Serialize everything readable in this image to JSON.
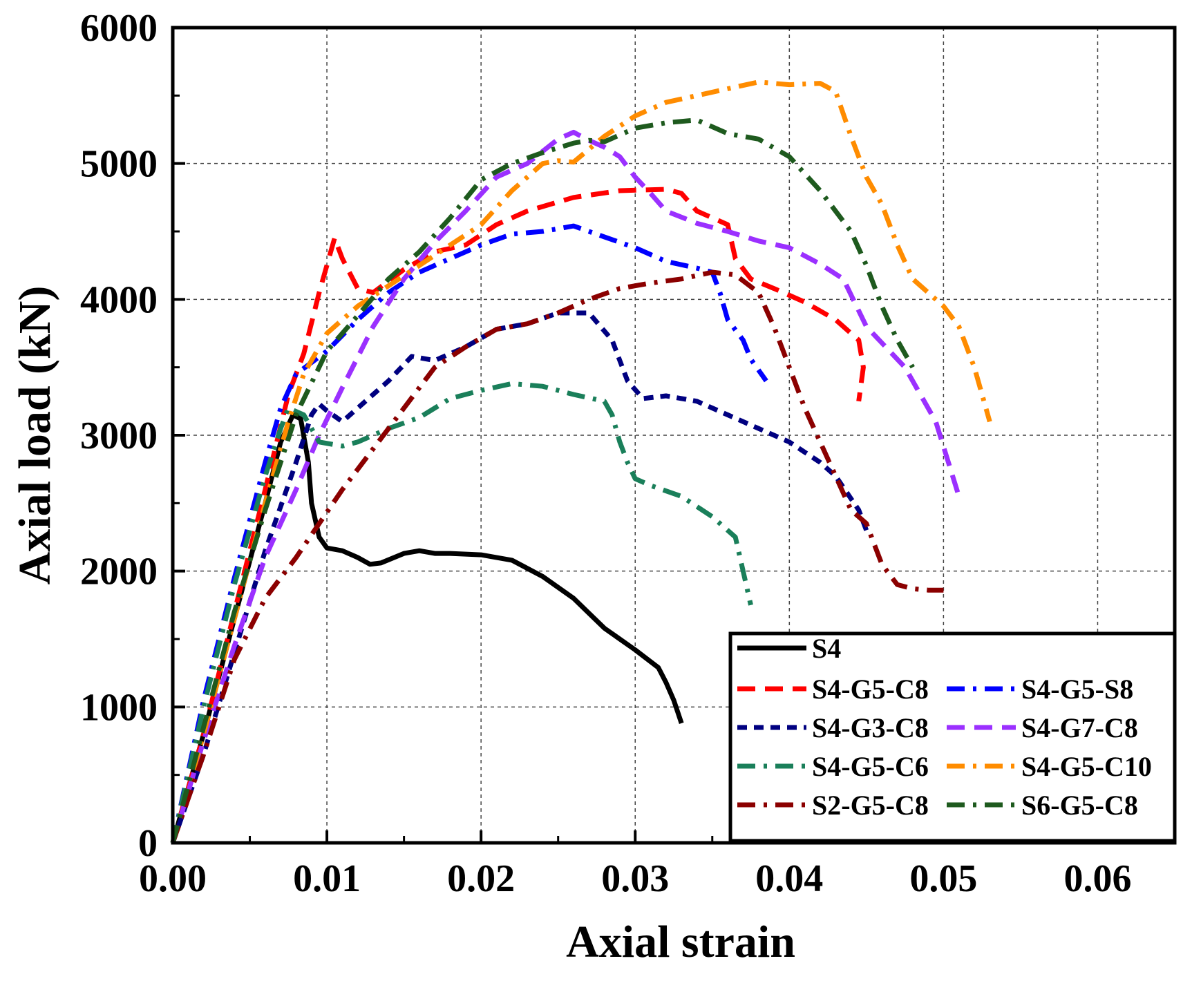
{
  "chart_data": {
    "type": "line",
    "title": "",
    "xlabel": "Axial strain",
    "ylabel": "Axial load (kN)",
    "xlim": [
      0,
      0.065
    ],
    "ylim": [
      0,
      6000
    ],
    "grid": true,
    "legend_position": "bottom-right",
    "x_ticks": [
      {
        "value": 0.0,
        "label": "0.00"
      },
      {
        "value": 0.01,
        "label": "0.01"
      },
      {
        "value": 0.02,
        "label": "0.02"
      },
      {
        "value": 0.03,
        "label": "0.03"
      },
      {
        "value": 0.04,
        "label": "0.04"
      },
      {
        "value": 0.05,
        "label": "0.05"
      },
      {
        "value": 0.06,
        "label": "0.06"
      }
    ],
    "y_ticks": [
      {
        "value": 0,
        "label": "0"
      },
      {
        "value": 1000,
        "label": "1000"
      },
      {
        "value": 2000,
        "label": "2000"
      },
      {
        "value": 3000,
        "label": "3000"
      },
      {
        "value": 4000,
        "label": "4000"
      },
      {
        "value": 5000,
        "label": "5000"
      },
      {
        "value": 6000,
        "label": "6000"
      }
    ],
    "series": [
      {
        "name": "S4",
        "color": "#000000",
        "dash": "solid",
        "points": [
          [
            0,
            0
          ],
          [
            0.002,
            800
          ],
          [
            0.004,
            1650
          ],
          [
            0.006,
            2500
          ],
          [
            0.007,
            2950
          ],
          [
            0.0078,
            3150
          ],
          [
            0.0083,
            3120
          ],
          [
            0.0088,
            2800
          ],
          [
            0.009,
            2500
          ],
          [
            0.0095,
            2250
          ],
          [
            0.01,
            2170
          ],
          [
            0.011,
            2150
          ],
          [
            0.012,
            2100
          ],
          [
            0.0128,
            2050
          ],
          [
            0.0135,
            2060
          ],
          [
            0.015,
            2130
          ],
          [
            0.016,
            2150
          ],
          [
            0.017,
            2130
          ],
          [
            0.018,
            2130
          ],
          [
            0.02,
            2120
          ],
          [
            0.022,
            2080
          ],
          [
            0.024,
            1960
          ],
          [
            0.026,
            1800
          ],
          [
            0.028,
            1580
          ],
          [
            0.03,
            1420
          ],
          [
            0.0315,
            1290
          ],
          [
            0.032,
            1180
          ],
          [
            0.0325,
            1050
          ],
          [
            0.033,
            880
          ]
        ]
      },
      {
        "name": "S4-G5-C8",
        "color": "#ff0000",
        "dash": "dash",
        "points": [
          [
            0,
            0
          ],
          [
            0.002,
            800
          ],
          [
            0.004,
            1700
          ],
          [
            0.006,
            2600
          ],
          [
            0.0075,
            3300
          ],
          [
            0.0085,
            3600
          ],
          [
            0.0095,
            4050
          ],
          [
            0.0105,
            4450
          ],
          [
            0.011,
            4300
          ],
          [
            0.012,
            4080
          ],
          [
            0.013,
            4050
          ],
          [
            0.015,
            4220
          ],
          [
            0.017,
            4350
          ],
          [
            0.019,
            4400
          ],
          [
            0.021,
            4550
          ],
          [
            0.023,
            4650
          ],
          [
            0.026,
            4750
          ],
          [
            0.029,
            4800
          ],
          [
            0.032,
            4810
          ],
          [
            0.033,
            4780
          ],
          [
            0.034,
            4650
          ],
          [
            0.035,
            4600
          ],
          [
            0.036,
            4550
          ],
          [
            0.0365,
            4300
          ],
          [
            0.0375,
            4150
          ],
          [
            0.039,
            4080
          ],
          [
            0.041,
            3980
          ],
          [
            0.043,
            3850
          ],
          [
            0.0445,
            3700
          ],
          [
            0.0448,
            3500
          ],
          [
            0.0445,
            3250
          ]
        ]
      },
      {
        "name": "S4-G5-S8",
        "color": "#0000ff",
        "dash": "dashdot",
        "points": [
          [
            0,
            0
          ],
          [
            0.002,
            1050
          ],
          [
            0.004,
            1950
          ],
          [
            0.006,
            2800
          ],
          [
            0.007,
            3200
          ],
          [
            0.008,
            3450
          ],
          [
            0.01,
            3620
          ],
          [
            0.012,
            3850
          ],
          [
            0.014,
            4050
          ],
          [
            0.016,
            4200
          ],
          [
            0.018,
            4300
          ],
          [
            0.02,
            4400
          ],
          [
            0.022,
            4480
          ],
          [
            0.024,
            4500
          ],
          [
            0.026,
            4540
          ],
          [
            0.028,
            4460
          ],
          [
            0.03,
            4380
          ],
          [
            0.032,
            4280
          ],
          [
            0.034,
            4230
          ],
          [
            0.035,
            4200
          ],
          [
            0.0355,
            4050
          ],
          [
            0.036,
            3850
          ],
          [
            0.037,
            3700
          ],
          [
            0.0375,
            3560
          ],
          [
            0.0385,
            3400
          ]
        ]
      },
      {
        "name": "S4-G3-C8",
        "color": "#000080",
        "dash": "shortdash",
        "points": [
          [
            0,
            0
          ],
          [
            0.002,
            650
          ],
          [
            0.004,
            1400
          ],
          [
            0.006,
            2150
          ],
          [
            0.008,
            2800
          ],
          [
            0.009,
            3150
          ],
          [
            0.0095,
            3230
          ],
          [
            0.01,
            3180
          ],
          [
            0.011,
            3100
          ],
          [
            0.012,
            3200
          ],
          [
            0.014,
            3400
          ],
          [
            0.0155,
            3580
          ],
          [
            0.017,
            3550
          ],
          [
            0.019,
            3650
          ],
          [
            0.021,
            3780
          ],
          [
            0.023,
            3820
          ],
          [
            0.025,
            3900
          ],
          [
            0.027,
            3900
          ],
          [
            0.0285,
            3700
          ],
          [
            0.029,
            3550
          ],
          [
            0.0295,
            3400
          ],
          [
            0.0305,
            3270
          ],
          [
            0.032,
            3290
          ],
          [
            0.034,
            3250
          ],
          [
            0.036,
            3150
          ],
          [
            0.038,
            3050
          ],
          [
            0.04,
            2950
          ],
          [
            0.042,
            2800
          ],
          [
            0.043,
            2700
          ],
          [
            0.0445,
            2450
          ],
          [
            0.045,
            2300
          ]
        ]
      },
      {
        "name": "S4-G7-C8",
        "color": "#9b30ff",
        "dash": "dash",
        "points": [
          [
            0,
            0
          ],
          [
            0.002,
            750
          ],
          [
            0.004,
            1450
          ],
          [
            0.006,
            2100
          ],
          [
            0.008,
            2600
          ],
          [
            0.0095,
            3000
          ],
          [
            0.011,
            3350
          ],
          [
            0.013,
            3800
          ],
          [
            0.015,
            4150
          ],
          [
            0.017,
            4420
          ],
          [
            0.019,
            4650
          ],
          [
            0.021,
            4900
          ],
          [
            0.023,
            5000
          ],
          [
            0.025,
            5180
          ],
          [
            0.026,
            5230
          ],
          [
            0.027,
            5170
          ],
          [
            0.028,
            5120
          ],
          [
            0.029,
            5050
          ],
          [
            0.03,
            4900
          ],
          [
            0.031,
            4780
          ],
          [
            0.032,
            4650
          ],
          [
            0.034,
            4560
          ],
          [
            0.036,
            4500
          ],
          [
            0.038,
            4430
          ],
          [
            0.04,
            4380
          ],
          [
            0.042,
            4260
          ],
          [
            0.0435,
            4150
          ],
          [
            0.045,
            3800
          ],
          [
            0.0475,
            3500
          ],
          [
            0.0495,
            3100
          ],
          [
            0.051,
            2550
          ]
        ]
      },
      {
        "name": "S4-G5-C6",
        "color": "#1a7f5a",
        "dash": "dashdot",
        "points": [
          [
            0,
            0
          ],
          [
            0.002,
            1000
          ],
          [
            0.004,
            1900
          ],
          [
            0.006,
            2700
          ],
          [
            0.007,
            3050
          ],
          [
            0.0075,
            3200
          ],
          [
            0.0085,
            3150
          ],
          [
            0.0095,
            2950
          ],
          [
            0.011,
            2920
          ],
          [
            0.012,
            2950
          ],
          [
            0.014,
            3050
          ],
          [
            0.016,
            3130
          ],
          [
            0.018,
            3270
          ],
          [
            0.02,
            3330
          ],
          [
            0.022,
            3380
          ],
          [
            0.024,
            3360
          ],
          [
            0.026,
            3300
          ],
          [
            0.028,
            3250
          ],
          [
            0.0285,
            3150
          ],
          [
            0.029,
            2950
          ],
          [
            0.0295,
            2800
          ],
          [
            0.03,
            2680
          ],
          [
            0.031,
            2630
          ],
          [
            0.033,
            2550
          ],
          [
            0.035,
            2400
          ],
          [
            0.0365,
            2250
          ],
          [
            0.037,
            2000
          ],
          [
            0.0375,
            1750
          ]
        ]
      },
      {
        "name": "S4-G5-C10",
        "color": "#ff8c00",
        "dash": "dashdot",
        "points": [
          [
            0,
            0
          ],
          [
            0.002,
            800
          ],
          [
            0.004,
            1650
          ],
          [
            0.006,
            2500
          ],
          [
            0.0075,
            3100
          ],
          [
            0.0085,
            3450
          ],
          [
            0.01,
            3750
          ],
          [
            0.012,
            3950
          ],
          [
            0.014,
            4100
          ],
          [
            0.016,
            4250
          ],
          [
            0.018,
            4400
          ],
          [
            0.02,
            4550
          ],
          [
            0.022,
            4800
          ],
          [
            0.024,
            5000
          ],
          [
            0.025,
            5020
          ],
          [
            0.026,
            5010
          ],
          [
            0.028,
            5200
          ],
          [
            0.03,
            5350
          ],
          [
            0.032,
            5450
          ],
          [
            0.034,
            5500
          ],
          [
            0.036,
            5550
          ],
          [
            0.038,
            5600
          ],
          [
            0.04,
            5580
          ],
          [
            0.042,
            5590
          ],
          [
            0.043,
            5530
          ],
          [
            0.044,
            5200
          ],
          [
            0.045,
            4900
          ],
          [
            0.046,
            4700
          ],
          [
            0.047,
            4400
          ],
          [
            0.048,
            4150
          ],
          [
            0.049,
            4050
          ],
          [
            0.05,
            3950
          ],
          [
            0.051,
            3800
          ],
          [
            0.052,
            3500
          ],
          [
            0.053,
            3100
          ]
        ]
      },
      {
        "name": "S2-G5-C8",
        "color": "#8b0000",
        "dash": "dashdot",
        "points": [
          [
            0,
            0
          ],
          [
            0.002,
            650
          ],
          [
            0.004,
            1350
          ],
          [
            0.006,
            1800
          ],
          [
            0.008,
            2100
          ],
          [
            0.0095,
            2350
          ],
          [
            0.011,
            2600
          ],
          [
            0.013,
            2900
          ],
          [
            0.015,
            3200
          ],
          [
            0.017,
            3500
          ],
          [
            0.019,
            3650
          ],
          [
            0.021,
            3780
          ],
          [
            0.023,
            3820
          ],
          [
            0.025,
            3900
          ],
          [
            0.027,
            4000
          ],
          [
            0.029,
            4080
          ],
          [
            0.031,
            4120
          ],
          [
            0.033,
            4150
          ],
          [
            0.035,
            4200
          ],
          [
            0.0365,
            4180
          ],
          [
            0.038,
            4050
          ],
          [
            0.039,
            3800
          ],
          [
            0.04,
            3500
          ],
          [
            0.041,
            3200
          ],
          [
            0.042,
            2950
          ],
          [
            0.043,
            2700
          ],
          [
            0.044,
            2450
          ],
          [
            0.045,
            2350
          ],
          [
            0.046,
            2050
          ],
          [
            0.047,
            1900
          ],
          [
            0.048,
            1870
          ],
          [
            0.049,
            1860
          ],
          [
            0.05,
            1860
          ]
        ]
      },
      {
        "name": "S6-G5-C8",
        "color": "#1e5a1e",
        "dash": "dashdot",
        "points": [
          [
            0,
            0
          ],
          [
            0.002,
            850
          ],
          [
            0.004,
            1700
          ],
          [
            0.006,
            2450
          ],
          [
            0.008,
            3150
          ],
          [
            0.01,
            3620
          ],
          [
            0.012,
            3880
          ],
          [
            0.014,
            4150
          ],
          [
            0.016,
            4350
          ],
          [
            0.018,
            4600
          ],
          [
            0.02,
            4880
          ],
          [
            0.022,
            5000
          ],
          [
            0.024,
            5080
          ],
          [
            0.026,
            5150
          ],
          [
            0.027,
            5170
          ],
          [
            0.028,
            5160
          ],
          [
            0.03,
            5260
          ],
          [
            0.032,
            5300
          ],
          [
            0.034,
            5320
          ],
          [
            0.036,
            5220
          ],
          [
            0.038,
            5180
          ],
          [
            0.04,
            5050
          ],
          [
            0.042,
            4800
          ],
          [
            0.044,
            4500
          ],
          [
            0.045,
            4250
          ],
          [
            0.046,
            3950
          ],
          [
            0.047,
            3700
          ],
          [
            0.048,
            3500
          ]
        ]
      }
    ]
  }
}
